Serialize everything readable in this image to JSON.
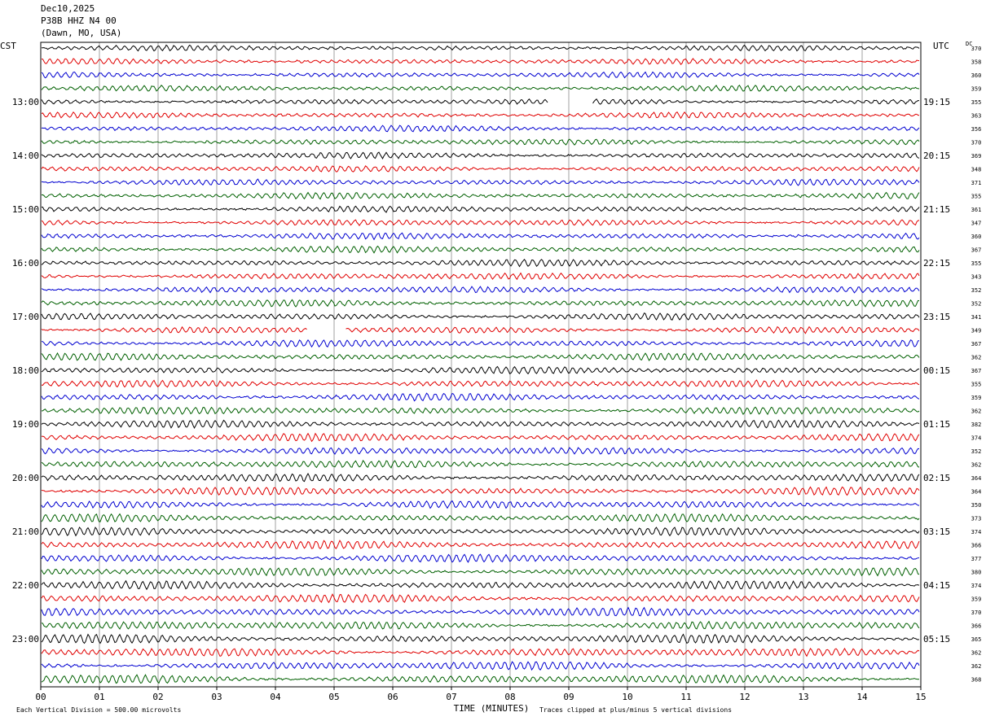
{
  "header": {
    "date": "Dec10,2025",
    "station": "P38B HHZ N4 00",
    "location": "(Dawn, MO, USA)"
  },
  "left_zone": "CST",
  "right_zone": "UTC",
  "dc_label": "DC",
  "colors": {
    "trace_cycle": [
      "#000000",
      "#e00000",
      "#0000d0",
      "#006000"
    ],
    "grid": "#a0a0a0",
    "frame": "#000000"
  },
  "chart_data": {
    "type": "line",
    "chart_kind": "helicorder",
    "xlabel": "TIME (MINUTES)",
    "x_ticks": [
      "00",
      "01",
      "02",
      "03",
      "04",
      "05",
      "06",
      "07",
      "08",
      "09",
      "10",
      "11",
      "12",
      "13",
      "14",
      "15"
    ],
    "xlim": [
      0,
      15
    ],
    "row_minutes": 15,
    "left_hour_labels": [
      {
        "row": 4,
        "text": "13:00"
      },
      {
        "row": 8,
        "text": "14:00"
      },
      {
        "row": 12,
        "text": "15:00"
      },
      {
        "row": 16,
        "text": "16:00"
      },
      {
        "row": 20,
        "text": "17:00"
      },
      {
        "row": 24,
        "text": "18:00"
      },
      {
        "row": 28,
        "text": "19:00"
      },
      {
        "row": 32,
        "text": "20:00"
      },
      {
        "row": 36,
        "text": "21:00"
      },
      {
        "row": 40,
        "text": "22:00"
      },
      {
        "row": 44,
        "text": "23:00"
      }
    ],
    "right_hour_labels": [
      {
        "row": 4,
        "text": "19:15"
      },
      {
        "row": 8,
        "text": "20:15"
      },
      {
        "row": 12,
        "text": "21:15"
      },
      {
        "row": 16,
        "text": "22:15"
      },
      {
        "row": 20,
        "text": "23:15"
      },
      {
        "row": 24,
        "text": "00:15"
      },
      {
        "row": 28,
        "text": "01:15"
      },
      {
        "row": 32,
        "text": "02:15"
      },
      {
        "row": 36,
        "text": "03:15"
      },
      {
        "row": 40,
        "text": "04:15"
      },
      {
        "row": 44,
        "text": "05:15"
      }
    ],
    "dc_offsets": [
      370,
      358,
      360,
      359,
      355,
      363,
      356,
      370,
      369,
      348,
      371,
      355,
      361,
      347,
      360,
      367,
      355,
      343,
      352,
      352,
      341,
      349,
      367,
      362,
      367,
      355,
      359,
      362,
      382,
      374,
      352,
      362,
      364,
      364,
      350,
      373,
      374,
      366,
      377,
      380,
      374,
      359,
      370,
      366,
      365,
      362,
      362,
      368
    ],
    "gaps": [
      {
        "row": 4,
        "start_min": 8.65,
        "end_min": 9.4
      },
      {
        "row": 21,
        "start_min": 4.55,
        "end_min": 5.2
      }
    ],
    "footer": {
      "scale": "Each Vertical Division = 500.00 microvolts",
      "clip": "Traces clipped at plus/minus 5 vertical divisions"
    }
  }
}
